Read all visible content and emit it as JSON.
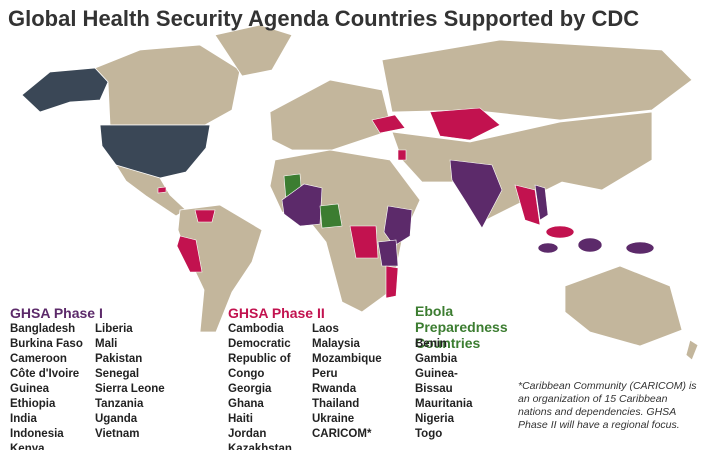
{
  "title": "Global Health Security Agenda Countries Supported by CDC",
  "groups": [
    {
      "title": "GHSA Phase I",
      "color": "#5c2a6a",
      "columns": [
        [
          "Bangladesh",
          "Burkina Faso",
          "Cameroon",
          "Côte d'Ivoire",
          "Guinea",
          "Ethiopia",
          "India",
          "Indonesia",
          "Kenya"
        ],
        [
          "Liberia",
          "Mali",
          "Pakistan",
          "Senegal",
          "Sierra Leone",
          "Tanzania",
          "Uganda",
          "Vietnam"
        ]
      ]
    },
    {
      "title": "GHSA Phase II",
      "color": "#c2124f",
      "columns": [
        [
          "Cambodia",
          "Democratic Republic of Congo",
          "Georgia",
          "Ghana",
          "Haiti",
          "Jordan",
          "Kazakhstan"
        ],
        [
          "Laos",
          "Malaysia",
          "Mozambique",
          "Peru",
          "Rwanda",
          "Thailand",
          "Ukraine",
          "CARICOM*"
        ]
      ]
    },
    {
      "title": "Ebola Preparedness Countries",
      "color": "#3c7d31",
      "columns": [
        [
          "Benin",
          "Gambia",
          "Guinea-Bissau",
          "Mauritania",
          "Nigeria",
          "Togo"
        ]
      ]
    }
  ],
  "footnote": "*Caribbean Community (CARICOM) is an organization of 15 Caribbean nations and dependencies. GHSA Phase II will have a regional focus."
}
